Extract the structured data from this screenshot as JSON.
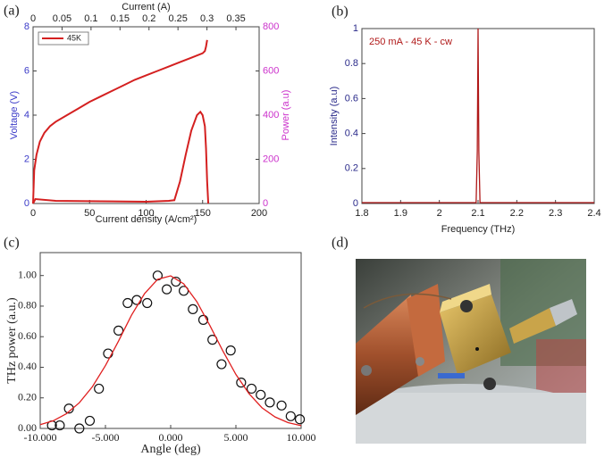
{
  "chart_data": [
    {
      "type": "line",
      "label": "(a)",
      "x_label": "Current density (A/cm²)",
      "x2_label": "Current (A)",
      "y_label": "Voltage (V)",
      "y2_label": "Power (a.u)",
      "y_color": "#3b3bc8",
      "y2_color": "#cc33cc",
      "xlim": [
        0,
        200
      ],
      "xticks": [
        0,
        50,
        100,
        150,
        200
      ],
      "x2lim": [
        0,
        0.39
      ],
      "x2ticks": [
        0,
        0.05,
        0.1,
        0.15,
        0.2,
        0.25,
        0.3,
        0.35
      ],
      "ylim": [
        0,
        8
      ],
      "yticks": [
        0,
        2,
        4,
        6,
        8
      ],
      "y2lim": [
        0,
        800
      ],
      "y2ticks": [
        0,
        200,
        400,
        600,
        800
      ],
      "legend": "upper left",
      "series": [
        {
          "name": "45K",
          "color": "#d42020",
          "x": [
            0,
            1,
            3,
            6,
            10,
            15,
            20,
            30,
            40,
            50,
            60,
            70,
            80,
            90,
            100,
            110,
            120,
            130,
            140,
            150,
            152,
            153,
            154
          ],
          "values": [
            0,
            1.5,
            2.2,
            2.8,
            3.2,
            3.5,
            3.7,
            4.0,
            4.3,
            4.6,
            4.85,
            5.1,
            5.35,
            5.6,
            5.8,
            6.0,
            6.2,
            6.4,
            6.6,
            6.8,
            6.9,
            7.1,
            7.4
          ]
        },
        {
          "color": "#d42020",
          "axis": "y2",
          "x": [
            0,
            2,
            20,
            60,
            100,
            120,
            125,
            130,
            135,
            140,
            145,
            148,
            150,
            152,
            153,
            154,
            155
          ],
          "values": [
            0,
            20,
            12,
            10,
            8,
            12,
            15,
            100,
            220,
            330,
            400,
            415,
            400,
            350,
            250,
            100,
            0
          ]
        }
      ]
    },
    {
      "type": "line",
      "label": "(b)",
      "x_label": "Frequency (THz)",
      "y_label": "Intensity (a.u)",
      "y_color": "#2a2a8a",
      "annotation": "250 mA - 45 K - cw",
      "xlim": [
        1.8,
        2.4
      ],
      "xticks": [
        1.8,
        1.9,
        2,
        2.1,
        2.2,
        2.3,
        2.4
      ],
      "ylim": [
        0,
        1
      ],
      "yticks": [
        0,
        0.2,
        0.4,
        0.6,
        0.8,
        1
      ],
      "series": [
        {
          "color": "#b01818",
          "x": [
            1.8,
            2.095,
            2.098,
            2.1,
            2.102,
            2.105,
            2.4
          ],
          "values": [
            0.005,
            0.005,
            0.3,
            1,
            0.3,
            0.005,
            0.005
          ]
        }
      ]
    },
    {
      "type": "scatter",
      "label": "(c)",
      "x_label": "Angle (deg)",
      "y_label": "THz power (a.u.)",
      "xlim": [
        -10000,
        10000
      ],
      "xticks": [
        {
          "value": -10000,
          "label": "-10.000"
        },
        {
          "value": -5000,
          "label": "-5.000"
        },
        {
          "value": 0,
          "label": "0.000"
        },
        {
          "value": 5000,
          "label": "5.000"
        },
        {
          "value": 10000,
          "label": "10.000"
        }
      ],
      "ylim": [
        0,
        1.15
      ],
      "yticks": [
        {
          "value": 0,
          "label": "0.00"
        },
        {
          "value": 0.2,
          "label": "0.20"
        },
        {
          "value": 0.4,
          "label": "0.40"
        },
        {
          "value": 0.6,
          "label": "0.60"
        },
        {
          "value": 0.8,
          "label": "0.80"
        },
        {
          "value": 1,
          "label": "1.00"
        }
      ],
      "series": [
        {
          "type": "scatter",
          "color": "#111111",
          "x": [
            -9100,
            -8500,
            -7800,
            -7000,
            -6200,
            -5500,
            -4800,
            -4000,
            -3300,
            -2600,
            -1800,
            -1000,
            -300,
            400,
            1000,
            1700,
            2500,
            3200,
            3900,
            4600,
            5400,
            6200,
            6900,
            7600,
            8500,
            9200,
            9900
          ],
          "values": [
            0.02,
            0.02,
            0.13,
            0.0,
            0.05,
            0.26,
            0.49,
            0.64,
            0.82,
            0.84,
            0.82,
            1.0,
            0.91,
            0.96,
            0.9,
            0.78,
            0.71,
            0.58,
            0.42,
            0.51,
            0.3,
            0.26,
            0.22,
            0.17,
            0.15,
            0.08,
            0.06
          ]
        },
        {
          "type": "line",
          "color": "#e02020",
          "x": [
            -10000,
            -9000,
            -8000,
            -7000,
            -6000,
            -5000,
            -4000,
            -3000,
            -2000,
            -1000,
            0,
            1000,
            2000,
            3000,
            4000,
            5000,
            6000,
            7000,
            8000,
            9000,
            10000
          ],
          "values": [
            0.025,
            0.05,
            0.096,
            0.168,
            0.273,
            0.411,
            0.571,
            0.741,
            0.882,
            0.975,
            0.998,
            0.946,
            0.83,
            0.674,
            0.507,
            0.353,
            0.228,
            0.135,
            0.075,
            0.038,
            0.018
          ]
        }
      ]
    }
  ],
  "photo": {
    "label": "(d)"
  }
}
